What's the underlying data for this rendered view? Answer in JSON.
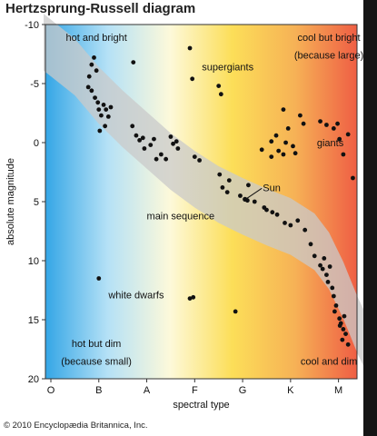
{
  "chart_data": {
    "type": "scatter",
    "title": "Hertzsprung-Russell diagram",
    "xlabel": "spectral type",
    "ylabel": "absolute magnitude",
    "x_categories": [
      "O",
      "B",
      "A",
      "F",
      "G",
      "K",
      "M"
    ],
    "ylim": [
      -10,
      20
    ],
    "y_inverted": true,
    "y_ticks": [
      -10,
      -5,
      0,
      5,
      10,
      15,
      20
    ],
    "grid": false,
    "background_gradient": [
      "#34a6e6",
      "#b5e1f6",
      "#fdf9da",
      "#fcde58",
      "#f6b256",
      "#ef5e44"
    ],
    "band_color": "#c9c9c9",
    "main_sequence_band": [
      [
        -0.15,
        -8.5
      ],
      [
        0.5,
        -6.4
      ],
      [
        1.0,
        -4.0
      ],
      [
        1.5,
        -2.0
      ],
      [
        2.0,
        -0.2
      ],
      [
        2.5,
        1.6
      ],
      [
        3.0,
        3.1
      ],
      [
        3.5,
        4.4
      ],
      [
        4.0,
        5.4
      ],
      [
        4.5,
        6.3
      ],
      [
        5.0,
        7.1
      ],
      [
        5.5,
        8.4
      ],
      [
        5.8,
        10.0
      ],
      [
        6.1,
        12.5
      ],
      [
        6.4,
        15.5
      ],
      [
        6.7,
        18.0
      ]
    ],
    "band_halfwidth": 2.4,
    "stars": [
      [
        0.85,
        -6.6
      ],
      [
        0.9,
        -7.2
      ],
      [
        0.95,
        -6.1
      ],
      [
        0.8,
        -5.6
      ],
      [
        0.78,
        -4.7
      ],
      [
        0.85,
        -4.4
      ],
      [
        0.92,
        -3.8
      ],
      [
        0.98,
        -3.4
      ],
      [
        1.0,
        -2.8
      ],
      [
        1.05,
        -2.3
      ],
      [
        1.1,
        -3.2
      ],
      [
        1.15,
        -2.8
      ],
      [
        1.2,
        -2.2
      ],
      [
        1.25,
        -3.0
      ],
      [
        1.02,
        -1.0
      ],
      [
        1.13,
        -1.4
      ],
      [
        1.7,
        -1.4
      ],
      [
        1.78,
        -0.6
      ],
      [
        1.85,
        -0.2
      ],
      [
        1.95,
        0.5
      ],
      [
        1.92,
        -0.4
      ],
      [
        2.08,
        0.2
      ],
      [
        2.15,
        -0.3
      ],
      [
        2.2,
        1.4
      ],
      [
        2.3,
        1.0
      ],
      [
        2.4,
        1.4
      ],
      [
        2.5,
        -0.5
      ],
      [
        2.55,
        0.1
      ],
      [
        2.65,
        0.5
      ],
      [
        2.62,
        -0.1
      ],
      [
        3.0,
        1.2
      ],
      [
        3.1,
        1.5
      ],
      [
        3.52,
        2.7
      ],
      [
        3.58,
        3.8
      ],
      [
        3.72,
        3.2
      ],
      [
        3.68,
        4.2
      ],
      [
        3.95,
        4.5
      ],
      [
        4.1,
        4.9
      ],
      [
        4.25,
        5.0
      ],
      [
        4.12,
        3.6
      ],
      [
        4.45,
        5.5
      ],
      [
        4.5,
        5.7
      ],
      [
        4.62,
        5.9
      ],
      [
        4.72,
        6.1
      ],
      [
        4.88,
        6.8
      ],
      [
        5.0,
        7.0
      ],
      [
        5.15,
        6.6
      ],
      [
        5.3,
        7.4
      ],
      [
        5.42,
        8.6
      ],
      [
        5.5,
        9.6
      ],
      [
        5.62,
        10.4
      ],
      [
        5.67,
        10.7
      ],
      [
        5.75,
        11.2
      ],
      [
        5.7,
        9.8
      ],
      [
        5.82,
        10.5
      ],
      [
        5.78,
        11.8
      ],
      [
        5.87,
        12.3
      ],
      [
        5.9,
        13.0
      ],
      [
        5.95,
        13.8
      ],
      [
        5.92,
        14.3
      ],
      [
        6.02,
        14.9
      ],
      [
        6.05,
        15.3
      ],
      [
        6.1,
        15.8
      ],
      [
        6.15,
        16.2
      ],
      [
        6.08,
        16.7
      ],
      [
        6.2,
        17.1
      ],
      [
        6.03,
        15.5
      ],
      [
        6.12,
        14.7
      ],
      [
        2.9,
        -8.0
      ],
      [
        2.95,
        -5.4
      ],
      [
        3.5,
        -4.8
      ],
      [
        3.55,
        -4.1
      ],
      [
        1.72,
        -6.8
      ],
      [
        4.4,
        0.6
      ],
      [
        4.6,
        1.2
      ],
      [
        4.6,
        -0.1
      ],
      [
        4.75,
        0.7
      ],
      [
        4.7,
        -0.6
      ],
      [
        4.85,
        1.0
      ],
      [
        4.9,
        0.0
      ],
      [
        4.95,
        -1.2
      ],
      [
        5.05,
        0.3
      ],
      [
        5.2,
        -2.3
      ],
      [
        5.27,
        -1.6
      ],
      [
        5.1,
        0.9
      ],
      [
        4.85,
        -2.8
      ],
      [
        5.62,
        -1.8
      ],
      [
        5.75,
        -1.5
      ],
      [
        5.9,
        -1.2
      ],
      [
        5.98,
        -1.6
      ],
      [
        6.02,
        -0.3
      ],
      [
        6.1,
        1.0
      ],
      [
        6.2,
        -0.7
      ],
      [
        6.3,
        3.0
      ],
      [
        1.0,
        11.5
      ],
      [
        2.9,
        13.2
      ],
      [
        2.97,
        13.1
      ],
      [
        3.85,
        14.3
      ]
    ],
    "sun": [
      4.05,
      4.8
    ],
    "annotations": [
      {
        "text": "hot and bright",
        "x": 0.95,
        "y": -8.6,
        "anchor": "middle"
      },
      {
        "text": "cool but bright",
        "x": 5.8,
        "y": -8.6,
        "anchor": "middle"
      },
      {
        "text": "(because large)",
        "x": 5.8,
        "y": -7.1,
        "anchor": "middle"
      },
      {
        "text": "supergiants",
        "x": 3.15,
        "y": -6.1,
        "anchor": "start"
      },
      {
        "text": "giants",
        "x": 5.55,
        "y": 0.3,
        "anchor": "start"
      },
      {
        "text": "Sun",
        "x": 4.42,
        "y": 4.1,
        "anchor": "start"
      },
      {
        "text": "main sequence",
        "x": 2.0,
        "y": 6.5,
        "anchor": "start"
      },
      {
        "text": "white dwarfs",
        "x": 1.2,
        "y": 13.2,
        "anchor": "start"
      },
      {
        "text": "hot but dim",
        "x": 0.95,
        "y": 17.3,
        "anchor": "middle"
      },
      {
        "text": "(because small)",
        "x": 0.95,
        "y": 18.8,
        "anchor": "middle"
      },
      {
        "text": "cool and dim",
        "x": 5.8,
        "y": 18.8,
        "anchor": "middle"
      }
    ]
  },
  "copyright": "© 2010 Encyclopædia Britannica, Inc."
}
